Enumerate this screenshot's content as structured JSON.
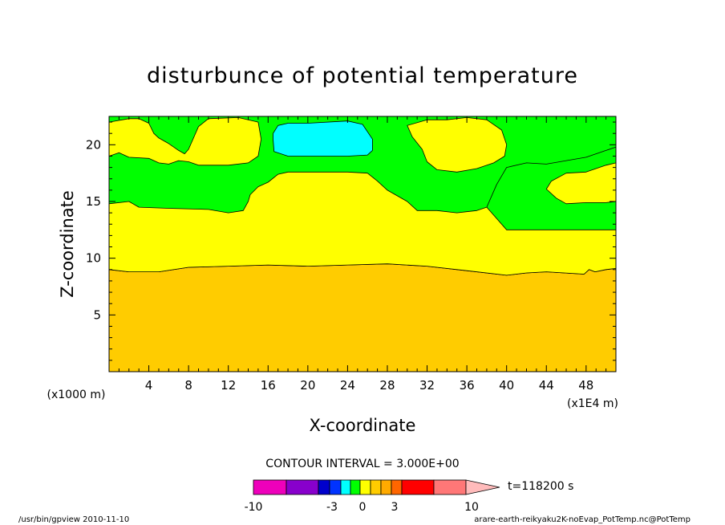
{
  "chart_data": {
    "type": "heatmap",
    "title": "disturbunce of potential temperature",
    "xlabel": "X-coordinate",
    "ylabel": "Z-coordinate",
    "x_unit_left": "(x1000 m)",
    "x_unit_right": "(x1E4 m)",
    "xlim": [
      0,
      51
    ],
    "ylim": [
      0,
      22.5
    ],
    "x_ticks": [
      4,
      8,
      12,
      16,
      20,
      24,
      28,
      32,
      36,
      40,
      44,
      48
    ],
    "x_tick_labels": [
      "4",
      "8",
      "12",
      "16",
      "20",
      "24",
      "28",
      "32",
      "36",
      "40",
      "44",
      "48"
    ],
    "y_ticks": [
      5,
      10,
      15,
      20
    ],
    "y_tick_labels": [
      "5",
      "10",
      "15",
      "20"
    ],
    "contour_interval_text": "CONTOUR INTERVAL = 3.000E+00",
    "time_label": "t=118200 s",
    "levels": [
      -10,
      -3,
      0,
      3,
      10
    ],
    "level_labels": [
      "-10",
      "-3",
      "0",
      "3",
      "10"
    ],
    "colors": {
      "background_green": "#00ff00",
      "yellow": "#ffff00",
      "orange": "#ffcc00",
      "cyan": "#00ffff"
    },
    "regions": [
      {
        "name": "orange-band",
        "color": "#ffcc00",
        "points": [
          [
            0,
            0
          ],
          [
            51,
            0
          ],
          [
            51,
            9.1
          ],
          [
            50,
            9.0
          ],
          [
            48.9,
            8.8
          ],
          [
            48.3,
            9.0
          ],
          [
            47.8,
            8.6
          ],
          [
            44,
            8.8
          ],
          [
            42,
            8.7
          ],
          [
            40,
            8.5
          ],
          [
            36,
            8.9
          ],
          [
            32,
            9.3
          ],
          [
            28,
            9.5
          ],
          [
            24,
            9.4
          ],
          [
            20,
            9.3
          ],
          [
            16,
            9.4
          ],
          [
            12,
            9.3
          ],
          [
            8,
            9.2
          ],
          [
            5,
            8.8
          ],
          [
            2,
            8.8
          ],
          [
            0,
            9.0
          ]
        ]
      },
      {
        "name": "lower-yellow-band",
        "color": "#ffff00",
        "points": [
          [
            0,
            14.8
          ],
          [
            2,
            15.0
          ],
          [
            3,
            14.5
          ],
          [
            6,
            14.4
          ],
          [
            10,
            14.3
          ],
          [
            12,
            14.0
          ],
          [
            13.5,
            14.2
          ],
          [
            14,
            15.0
          ],
          [
            14.2,
            15.6
          ],
          [
            15,
            16.3
          ],
          [
            16,
            16.7
          ],
          [
            17,
            17.4
          ],
          [
            18,
            17.6
          ],
          [
            20,
            17.6
          ],
          [
            24,
            17.6
          ],
          [
            26,
            17.5
          ],
          [
            27,
            16.8
          ],
          [
            28,
            16.0
          ],
          [
            30,
            15.0
          ],
          [
            31,
            14.2
          ],
          [
            33,
            14.2
          ],
          [
            35,
            14.0
          ],
          [
            36,
            14.1
          ],
          [
            37,
            14.2
          ],
          [
            38,
            14.5
          ],
          [
            39,
            16.5
          ],
          [
            40,
            18.0
          ],
          [
            42,
            18.4
          ],
          [
            44,
            18.3
          ],
          [
            46,
            18.6
          ],
          [
            48,
            18.9
          ],
          [
            50,
            19.5
          ],
          [
            51,
            19.8
          ],
          [
            51,
            15.0
          ],
          [
            50,
            14.9
          ],
          [
            48,
            14.9
          ],
          [
            46,
            14.8
          ],
          [
            45,
            15.3
          ],
          [
            44,
            16.1
          ],
          [
            44.5,
            16.8
          ],
          [
            46,
            17.5
          ],
          [
            48,
            17.6
          ],
          [
            50,
            18.2
          ],
          [
            51,
            18.4
          ],
          [
            51,
            19.8
          ],
          [
            50,
            19.5
          ],
          [
            48,
            18.9
          ],
          [
            46,
            18.6
          ],
          [
            44,
            18.3
          ],
          [
            42,
            18.4
          ],
          [
            40,
            18.0
          ],
          [
            39,
            16.5
          ],
          [
            38,
            14.5
          ],
          [
            40,
            12.5
          ],
          [
            51,
            12.5
          ],
          [
            51,
            9.1
          ],
          [
            50,
            9.0
          ],
          [
            48.9,
            8.8
          ],
          [
            48.3,
            9.0
          ],
          [
            47.8,
            8.6
          ],
          [
            44,
            8.8
          ],
          [
            42,
            8.7
          ],
          [
            40,
            8.5
          ],
          [
            36,
            8.9
          ],
          [
            32,
            9.3
          ],
          [
            28,
            9.5
          ],
          [
            24,
            9.4
          ],
          [
            20,
            9.3
          ],
          [
            16,
            9.4
          ],
          [
            12,
            9.3
          ],
          [
            8,
            9.2
          ],
          [
            5,
            8.8
          ],
          [
            2,
            8.8
          ],
          [
            0,
            9.0
          ]
        ]
      },
      {
        "name": "upper-left-yellow-patch",
        "color": "#ffff00",
        "points": [
          [
            0,
            19.0
          ],
          [
            1,
            19.3
          ],
          [
            2,
            18.9
          ],
          [
            4,
            18.8
          ],
          [
            5,
            18.4
          ],
          [
            6,
            18.3
          ],
          [
            7,
            18.6
          ],
          [
            8,
            18.5
          ],
          [
            9,
            18.2
          ],
          [
            10,
            18.2
          ],
          [
            12,
            18.2
          ],
          [
            14,
            18.4
          ],
          [
            15,
            19.0
          ],
          [
            15.3,
            20.5
          ],
          [
            15,
            22.0
          ],
          [
            13,
            22.4
          ],
          [
            10,
            22.3
          ],
          [
            9,
            21.6
          ],
          [
            8.5,
            20.6
          ],
          [
            8,
            19.6
          ],
          [
            7.6,
            19.2
          ],
          [
            7,
            19.5
          ],
          [
            6,
            20.1
          ],
          [
            5,
            20.6
          ],
          [
            4.5,
            21.0
          ],
          [
            4,
            21.9
          ],
          [
            3,
            22.3
          ],
          [
            2,
            22.3
          ],
          [
            0,
            22.0
          ]
        ]
      },
      {
        "name": "upper-middle-cyan-patch",
        "color": "#00ffff",
        "points": [
          [
            16.5,
            21.0
          ],
          [
            17,
            21.7
          ],
          [
            18,
            21.9
          ],
          [
            20,
            21.9
          ],
          [
            24,
            22.1
          ],
          [
            25.5,
            21.8
          ],
          [
            26.5,
            20.5
          ],
          [
            26.5,
            19.5
          ],
          [
            26,
            19.1
          ],
          [
            24,
            19.0
          ],
          [
            20,
            19.0
          ],
          [
            18,
            19.0
          ],
          [
            16.6,
            19.4
          ],
          [
            16.5,
            20.5
          ]
        ]
      },
      {
        "name": "upper-right-yellow-patch",
        "color": "#ffff00",
        "points": [
          [
            30,
            21.7
          ],
          [
            32,
            22.2
          ],
          [
            34,
            22.2
          ],
          [
            36,
            22.4
          ],
          [
            38,
            22.2
          ],
          [
            39.5,
            21.3
          ],
          [
            40,
            20.0
          ],
          [
            39.8,
            19.0
          ],
          [
            38.7,
            18.4
          ],
          [
            37,
            17.9
          ],
          [
            35,
            17.6
          ],
          [
            33,
            17.8
          ],
          [
            32,
            18.5
          ],
          [
            31.5,
            19.6
          ],
          [
            30.5,
            20.7
          ],
          [
            30,
            21.7
          ]
        ]
      }
    ],
    "legend_bins": [
      {
        "color": "#ee00bb"
      },
      {
        "color": "#8800cc"
      },
      {
        "color": "#0000cc"
      },
      {
        "color": "#0033ff"
      },
      {
        "color": "#00ffff"
      },
      {
        "color": "#00ff00"
      },
      {
        "color": "#ffff00"
      },
      {
        "color": "#ffcc00"
      },
      {
        "color": "#ffaa00"
      },
      {
        "color": "#ff6600"
      },
      {
        "color": "#ff0000"
      },
      {
        "color": "#ff7777"
      },
      {
        "color": "#ffbbbb"
      }
    ]
  },
  "footer": {
    "left": "/usr/bin/gpview 2010-11-10",
    "right": "arare-earth-reikyaku2K-noEvap_PotTemp.nc@PotTemp"
  }
}
